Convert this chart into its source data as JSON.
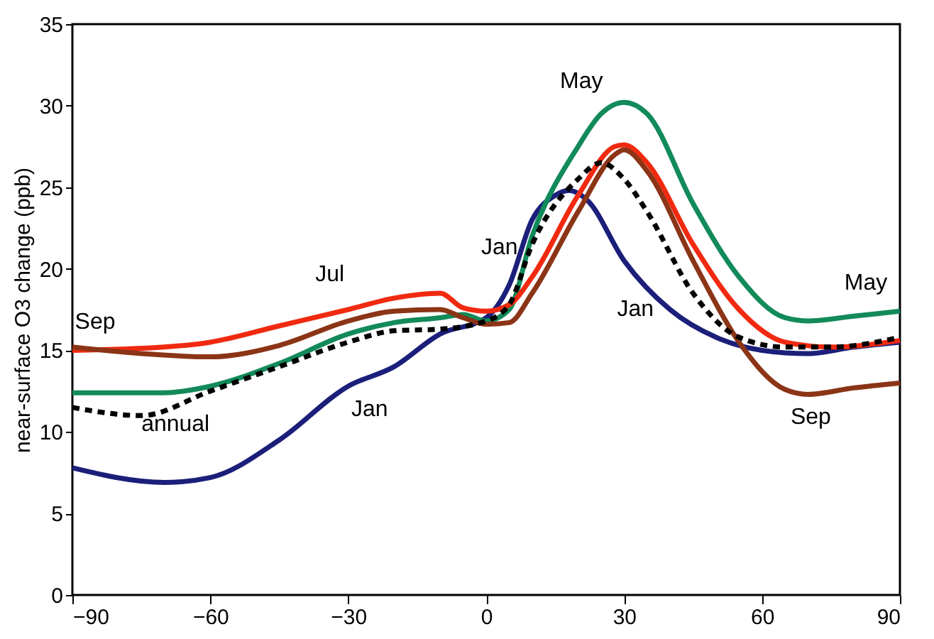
{
  "chart_data": {
    "type": "line",
    "ylabel": "near-surface O3 change (ppb)",
    "xlim": [
      -90,
      90
    ],
    "xticks": [
      -90,
      -60,
      -30,
      0,
      30,
      60,
      90
    ],
    "ylim": [
      0,
      35
    ],
    "yticks": [
      0,
      5,
      10,
      15,
      20,
      25,
      30,
      35
    ],
    "grid": false,
    "marker": "none",
    "series": [
      {
        "color": "#1b1f7a",
        "line_style": "solid",
        "x": [
          -90,
          -70,
          -60,
          -45,
          -30,
          -20,
          -10,
          0,
          5,
          10,
          15,
          18,
          22,
          30,
          40,
          50,
          60,
          70,
          80,
          90
        ],
        "values": [
          7.8,
          6.9,
          7.2,
          9.5,
          12.8,
          14,
          16,
          17,
          19,
          23,
          24.5,
          24.8,
          24.2,
          20.5,
          17.5,
          15.8,
          15,
          14.8,
          15.2,
          15.5
        ]
      },
      {
        "color": "#128a5a",
        "line_style": "solid",
        "x": [
          -90,
          -70,
          -60,
          -45,
          -30,
          -20,
          -10,
          -5,
          0,
          5,
          10,
          20,
          25,
          30,
          35,
          45,
          55,
          65,
          70,
          80,
          90
        ],
        "values": [
          12.4,
          12.4,
          12.8,
          14.2,
          16,
          16.7,
          17,
          17.2,
          16.8,
          17.5,
          22,
          27.5,
          29.5,
          30.2,
          29.5,
          24,
          19.5,
          17,
          16.8,
          17.1,
          17.4
        ]
      },
      {
        "color": "#f02a10",
        "line_style": "solid",
        "x": [
          -90,
          -70,
          -60,
          -45,
          -30,
          -20,
          -10,
          -5,
          0,
          5,
          10,
          20,
          28,
          30,
          35,
          45,
          55,
          65,
          75,
          90
        ],
        "values": [
          15,
          15.2,
          15.5,
          16.5,
          17.5,
          18.2,
          18.5,
          17.6,
          17.4,
          17.8,
          19.5,
          24.5,
          27.5,
          27.6,
          26.5,
          21.5,
          17.5,
          15.5,
          15.2,
          15.6
        ]
      },
      {
        "color": "#8b3416",
        "line_style": "solid",
        "x": [
          -90,
          -75,
          -60,
          -45,
          -30,
          -20,
          -10,
          -5,
          0,
          5,
          10,
          20,
          28,
          30,
          35,
          45,
          55,
          65,
          70,
          80,
          90
        ],
        "values": [
          15.2,
          14.8,
          14.6,
          15.3,
          16.8,
          17.4,
          17.5,
          17,
          16.6,
          16.7,
          18.5,
          23.5,
          27,
          27.3,
          26,
          20.5,
          15.5,
          12.6,
          12.3,
          12.7,
          13
        ]
      },
      {
        "color": "#000000",
        "line_style": "dashed",
        "x": [
          -90,
          -75,
          -60,
          -45,
          -30,
          -20,
          -10,
          0,
          5,
          10,
          20,
          25,
          30,
          35,
          45,
          55,
          65,
          75,
          90
        ],
        "values": [
          11.5,
          11,
          12.5,
          14,
          15.5,
          16.2,
          16.3,
          16.8,
          17.8,
          21.5,
          25.5,
          26.5,
          25.5,
          23.5,
          18.5,
          15.8,
          15.2,
          15.2,
          15.8
        ]
      }
    ],
    "annotations": [
      {
        "text": "Sep",
        "x": -90,
        "y": 15.2
      },
      {
        "text": "Jul",
        "x": -30,
        "y": 17.5
      },
      {
        "text": "annual",
        "x": -75,
        "y": 11
      },
      {
        "text": "Jan",
        "x": -30,
        "y": 12.8
      },
      {
        "text": "Jan",
        "x": 10,
        "y": 23
      },
      {
        "text": "May",
        "x": 30,
        "y": 30.2
      },
      {
        "text": "Jan",
        "x": 30,
        "y": 20.5
      },
      {
        "text": "May",
        "x": 90,
        "y": 17.4
      },
      {
        "text": "Sep",
        "x": 70,
        "y": 12.3
      }
    ]
  }
}
